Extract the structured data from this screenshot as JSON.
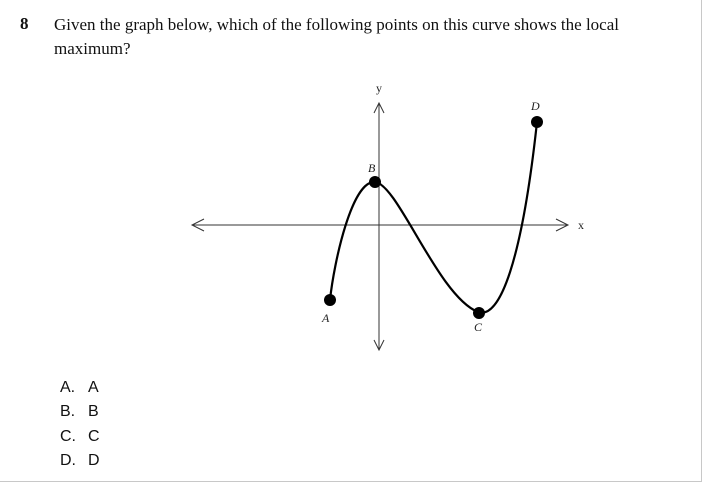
{
  "question": {
    "number": "8",
    "text": "Given the graph below, which of the following points on this curve shows the local maximum?"
  },
  "graph": {
    "axis_labels": {
      "x": "x",
      "y": "y"
    },
    "points": [
      {
        "label": "A"
      },
      {
        "label": "B"
      },
      {
        "label": "C"
      },
      {
        "label": "D"
      }
    ]
  },
  "choices": [
    {
      "letter": "A.",
      "text": "A"
    },
    {
      "letter": "B.",
      "text": "B"
    },
    {
      "letter": "C.",
      "text": "C"
    },
    {
      "letter": "D.",
      "text": "D"
    }
  ]
}
